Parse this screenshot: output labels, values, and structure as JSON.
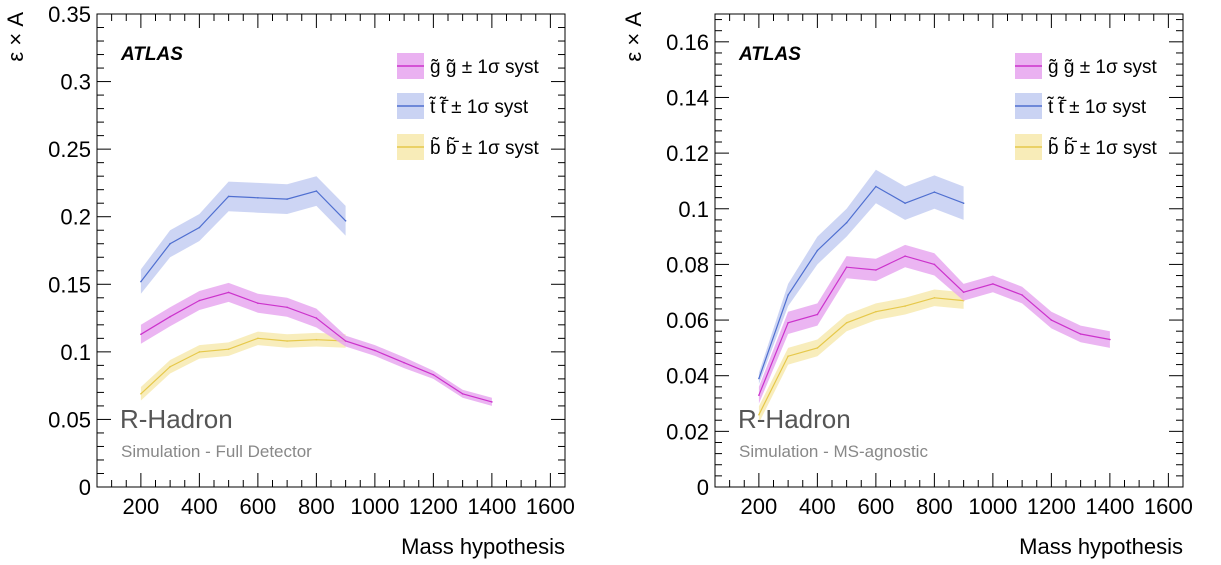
{
  "chart_data": [
    {
      "type": "area",
      "xlabel": "Mass hypothesis",
      "ylabel": "ε × A",
      "xlim": [
        50,
        1650
      ],
      "ylim": [
        0,
        0.35
      ],
      "xticks": [
        200,
        400,
        600,
        800,
        1000,
        1200,
        1400,
        1600
      ],
      "yticks": [
        0,
        0.05,
        0.1,
        0.15,
        0.2,
        0.25,
        0.3,
        0.35
      ],
      "ytick_labels": [
        "0",
        "0.05",
        "0.1",
        "0.15",
        "0.2",
        "0.25",
        "0.3",
        "0.35"
      ],
      "experiment_label": "ATLAS",
      "process_label": "R-Hadron",
      "detector_label": "Simulation - Full Detector",
      "legend_position": "top-right",
      "series": [
        {
          "name": "g̃ g̃ ± 1σ syst",
          "color": "#cc33cc",
          "band_color": "#e8a8f0",
          "x": [
            200,
            300,
            400,
            500,
            600,
            700,
            800,
            900,
            1000,
            1100,
            1200,
            1300,
            1400
          ],
          "y": [
            0.113,
            0.126,
            0.138,
            0.144,
            0.136,
            0.133,
            0.125,
            0.108,
            0.101,
            0.092,
            0.083,
            0.069,
            0.063
          ],
          "err": [
            0.007,
            0.007,
            0.007,
            0.007,
            0.007,
            0.007,
            0.007,
            0.004,
            0.004,
            0.004,
            0.003,
            0.003,
            0.003
          ]
        },
        {
          "name": "t̃ t̃̄ ± 1σ syst",
          "color": "#4f6fd0",
          "band_color": "#c4cef2",
          "x": [
            200,
            300,
            400,
            500,
            600,
            700,
            800,
            900
          ],
          "y": [
            0.152,
            0.18,
            0.192,
            0.215,
            0.214,
            0.213,
            0.219,
            0.197
          ],
          "err": [
            0.009,
            0.01,
            0.01,
            0.011,
            0.011,
            0.011,
            0.011,
            0.011
          ]
        },
        {
          "name": "b̃ b̃̄ ± 1σ syst",
          "color": "#e6c84a",
          "band_color": "#f7eab0",
          "x": [
            200,
            300,
            400,
            500,
            600,
            700,
            800,
            900
          ],
          "y": [
            0.069,
            0.089,
            0.1,
            0.102,
            0.11,
            0.108,
            0.109,
            0.108
          ],
          "err": [
            0.005,
            0.005,
            0.005,
            0.005,
            0.005,
            0.005,
            0.005,
            0.005
          ]
        }
      ]
    },
    {
      "type": "area",
      "xlabel": "Mass hypothesis",
      "ylabel": "ε × A",
      "xlim": [
        50,
        1650
      ],
      "ylim": [
        0,
        0.17
      ],
      "xticks": [
        200,
        400,
        600,
        800,
        1000,
        1200,
        1400,
        1600
      ],
      "yticks": [
        0,
        0.02,
        0.04,
        0.06,
        0.08,
        0.1,
        0.12,
        0.14,
        0.16
      ],
      "ytick_labels": [
        "0",
        "0.02",
        "0.04",
        "0.06",
        "0.08",
        "0.1",
        "0.12",
        "0.14",
        "0.16"
      ],
      "experiment_label": "ATLAS",
      "process_label": "R-Hadron",
      "detector_label": "Simulation - MS-agnostic",
      "legend_position": "top-right",
      "series": [
        {
          "name": "g̃ g̃ ± 1σ syst",
          "color": "#cc33cc",
          "band_color": "#e8a8f0",
          "x": [
            200,
            300,
            400,
            500,
            600,
            700,
            800,
            900,
            1000,
            1100,
            1200,
            1300,
            1400
          ],
          "y": [
            0.033,
            0.059,
            0.062,
            0.079,
            0.078,
            0.083,
            0.08,
            0.07,
            0.073,
            0.069,
            0.06,
            0.055,
            0.053
          ],
          "err": [
            0.003,
            0.004,
            0.004,
            0.004,
            0.004,
            0.004,
            0.004,
            0.003,
            0.003,
            0.003,
            0.003,
            0.003,
            0.003
          ]
        },
        {
          "name": "t̃ t̃̄ ± 1σ syst",
          "color": "#4f6fd0",
          "band_color": "#c4cef2",
          "x": [
            200,
            300,
            400,
            500,
            600,
            700,
            800,
            900
          ],
          "y": [
            0.039,
            0.069,
            0.085,
            0.095,
            0.108,
            0.102,
            0.106,
            0.102
          ],
          "err": [
            0.002,
            0.004,
            0.005,
            0.005,
            0.006,
            0.006,
            0.006,
            0.006
          ]
        },
        {
          "name": "b̃ b̃̄ ± 1σ syst",
          "color": "#e6c84a",
          "band_color": "#f7eab0",
          "x": [
            200,
            300,
            400,
            500,
            600,
            700,
            800,
            900
          ],
          "y": [
            0.026,
            0.047,
            0.05,
            0.059,
            0.063,
            0.065,
            0.068,
            0.067
          ],
          "err": [
            0.003,
            0.003,
            0.003,
            0.003,
            0.003,
            0.003,
            0.003,
            0.003
          ]
        }
      ]
    }
  ]
}
